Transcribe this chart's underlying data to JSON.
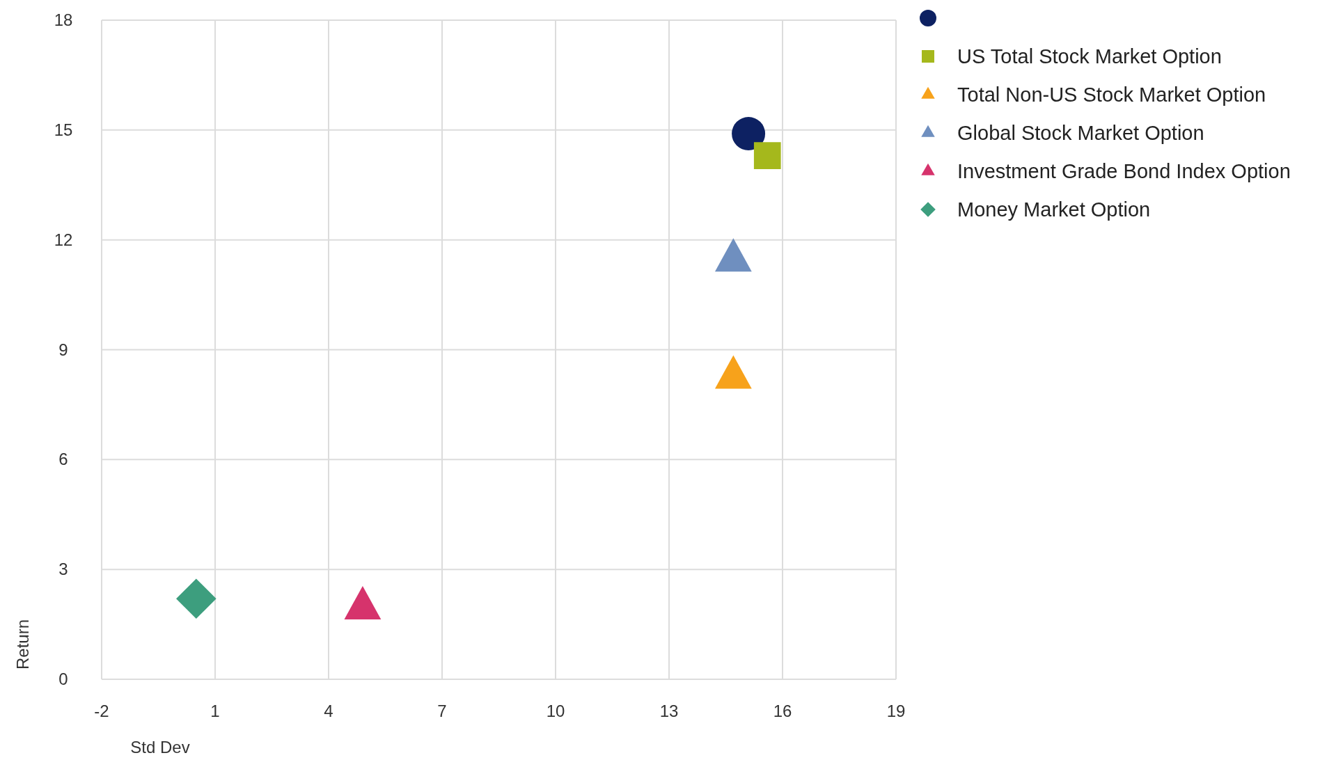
{
  "chart_data": {
    "type": "scatter",
    "xlabel": "Std Dev",
    "ylabel": "Return",
    "xlim": [
      -2,
      19
    ],
    "ylim": [
      0,
      18
    ],
    "xticks": [
      -2,
      1,
      4,
      7,
      10,
      13,
      16,
      19
    ],
    "yticks": [
      0,
      3,
      6,
      9,
      12,
      15,
      18
    ],
    "grid": true,
    "legend": "top right",
    "series": [
      {
        "color": "#0d2162",
        "marker": "circle",
        "x": [
          15.1
        ],
        "values": [
          14.9
        ]
      },
      {
        "name": "US Total Stock Market Option",
        "color": "#a5b81c",
        "marker": "square",
        "x": [
          15.6
        ],
        "values": [
          14.3
        ]
      },
      {
        "name": "Total Non-US Stock Market Option",
        "color": "#f7a21b",
        "marker": "triangle",
        "x": [
          14.7
        ],
        "values": [
          8.3
        ]
      },
      {
        "name": "Global Stock Market Option",
        "color": "#6f8fbf",
        "marker": "triangle",
        "x": [
          14.7
        ],
        "values": [
          11.5
        ]
      },
      {
        "name": "Investment Grade Bond Index Option",
        "color": "#d6336c",
        "marker": "triangle",
        "x": [
          4.9
        ],
        "values": [
          2.0
        ]
      },
      {
        "name": "Money Market Option",
        "color": "#3d9e7e",
        "marker": "diamond",
        "x": [
          0.5
        ],
        "values": [
          2.2
        ]
      }
    ]
  }
}
